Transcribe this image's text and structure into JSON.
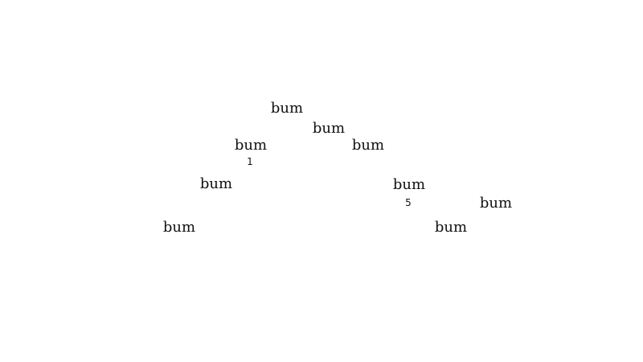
{
  "words": [
    "bum",
    "bum",
    "bum",
    "bum",
    "bum",
    "bum",
    "bum",
    "bum",
    "bum"
  ],
  "indices": [
    "1",
    "5"
  ]
}
